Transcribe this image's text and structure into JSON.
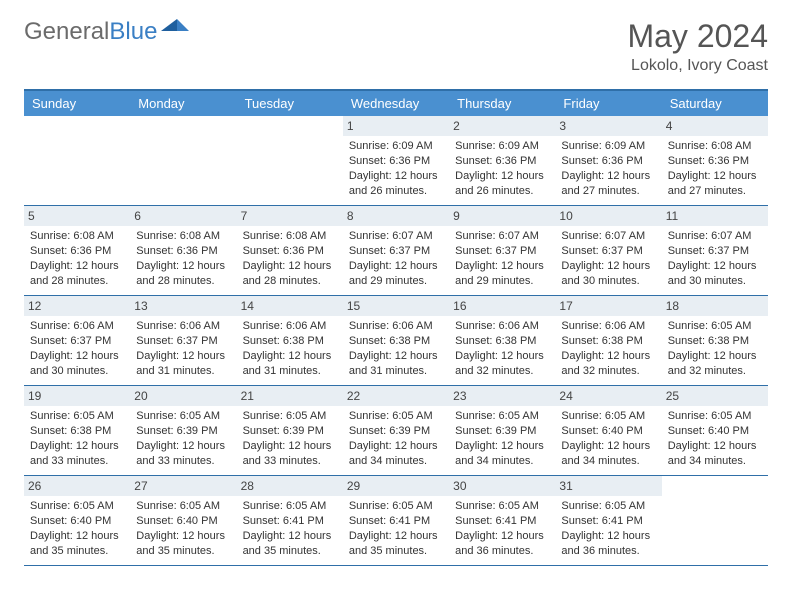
{
  "brand": {
    "part1": "General",
    "part2": "Blue"
  },
  "title": {
    "month": "May 2024",
    "location": "Lokolo, Ivory Coast"
  },
  "colors": {
    "header_bg": "#4a90d0",
    "border": "#2f6fa8",
    "num_bg": "#e8eef3",
    "text": "#333333",
    "brand_gray": "#6b6b6b",
    "brand_blue": "#3a7fc4"
  },
  "day_names": [
    "Sunday",
    "Monday",
    "Tuesday",
    "Wednesday",
    "Thursday",
    "Friday",
    "Saturday"
  ],
  "weeks": [
    [
      null,
      null,
      null,
      {
        "n": "1",
        "sr": "6:09 AM",
        "ss": "6:36 PM",
        "dl": "12 hours and 26 minutes."
      },
      {
        "n": "2",
        "sr": "6:09 AM",
        "ss": "6:36 PM",
        "dl": "12 hours and 26 minutes."
      },
      {
        "n": "3",
        "sr": "6:09 AM",
        "ss": "6:36 PM",
        "dl": "12 hours and 27 minutes."
      },
      {
        "n": "4",
        "sr": "6:08 AM",
        "ss": "6:36 PM",
        "dl": "12 hours and 27 minutes."
      }
    ],
    [
      {
        "n": "5",
        "sr": "6:08 AM",
        "ss": "6:36 PM",
        "dl": "12 hours and 28 minutes."
      },
      {
        "n": "6",
        "sr": "6:08 AM",
        "ss": "6:36 PM",
        "dl": "12 hours and 28 minutes."
      },
      {
        "n": "7",
        "sr": "6:08 AM",
        "ss": "6:36 PM",
        "dl": "12 hours and 28 minutes."
      },
      {
        "n": "8",
        "sr": "6:07 AM",
        "ss": "6:37 PM",
        "dl": "12 hours and 29 minutes."
      },
      {
        "n": "9",
        "sr": "6:07 AM",
        "ss": "6:37 PM",
        "dl": "12 hours and 29 minutes."
      },
      {
        "n": "10",
        "sr": "6:07 AM",
        "ss": "6:37 PM",
        "dl": "12 hours and 30 minutes."
      },
      {
        "n": "11",
        "sr": "6:07 AM",
        "ss": "6:37 PM",
        "dl": "12 hours and 30 minutes."
      }
    ],
    [
      {
        "n": "12",
        "sr": "6:06 AM",
        "ss": "6:37 PM",
        "dl": "12 hours and 30 minutes."
      },
      {
        "n": "13",
        "sr": "6:06 AM",
        "ss": "6:37 PM",
        "dl": "12 hours and 31 minutes."
      },
      {
        "n": "14",
        "sr": "6:06 AM",
        "ss": "6:38 PM",
        "dl": "12 hours and 31 minutes."
      },
      {
        "n": "15",
        "sr": "6:06 AM",
        "ss": "6:38 PM",
        "dl": "12 hours and 31 minutes."
      },
      {
        "n": "16",
        "sr": "6:06 AM",
        "ss": "6:38 PM",
        "dl": "12 hours and 32 minutes."
      },
      {
        "n": "17",
        "sr": "6:06 AM",
        "ss": "6:38 PM",
        "dl": "12 hours and 32 minutes."
      },
      {
        "n": "18",
        "sr": "6:05 AM",
        "ss": "6:38 PM",
        "dl": "12 hours and 32 minutes."
      }
    ],
    [
      {
        "n": "19",
        "sr": "6:05 AM",
        "ss": "6:38 PM",
        "dl": "12 hours and 33 minutes."
      },
      {
        "n": "20",
        "sr": "6:05 AM",
        "ss": "6:39 PM",
        "dl": "12 hours and 33 minutes."
      },
      {
        "n": "21",
        "sr": "6:05 AM",
        "ss": "6:39 PM",
        "dl": "12 hours and 33 minutes."
      },
      {
        "n": "22",
        "sr": "6:05 AM",
        "ss": "6:39 PM",
        "dl": "12 hours and 34 minutes."
      },
      {
        "n": "23",
        "sr": "6:05 AM",
        "ss": "6:39 PM",
        "dl": "12 hours and 34 minutes."
      },
      {
        "n": "24",
        "sr": "6:05 AM",
        "ss": "6:40 PM",
        "dl": "12 hours and 34 minutes."
      },
      {
        "n": "25",
        "sr": "6:05 AM",
        "ss": "6:40 PM",
        "dl": "12 hours and 34 minutes."
      }
    ],
    [
      {
        "n": "26",
        "sr": "6:05 AM",
        "ss": "6:40 PM",
        "dl": "12 hours and 35 minutes."
      },
      {
        "n": "27",
        "sr": "6:05 AM",
        "ss": "6:40 PM",
        "dl": "12 hours and 35 minutes."
      },
      {
        "n": "28",
        "sr": "6:05 AM",
        "ss": "6:41 PM",
        "dl": "12 hours and 35 minutes."
      },
      {
        "n": "29",
        "sr": "6:05 AM",
        "ss": "6:41 PM",
        "dl": "12 hours and 35 minutes."
      },
      {
        "n": "30",
        "sr": "6:05 AM",
        "ss": "6:41 PM",
        "dl": "12 hours and 36 minutes."
      },
      {
        "n": "31",
        "sr": "6:05 AM",
        "ss": "6:41 PM",
        "dl": "12 hours and 36 minutes."
      },
      null
    ]
  ],
  "labels": {
    "sunrise": "Sunrise:",
    "sunset": "Sunset:",
    "daylight": "Daylight:"
  }
}
